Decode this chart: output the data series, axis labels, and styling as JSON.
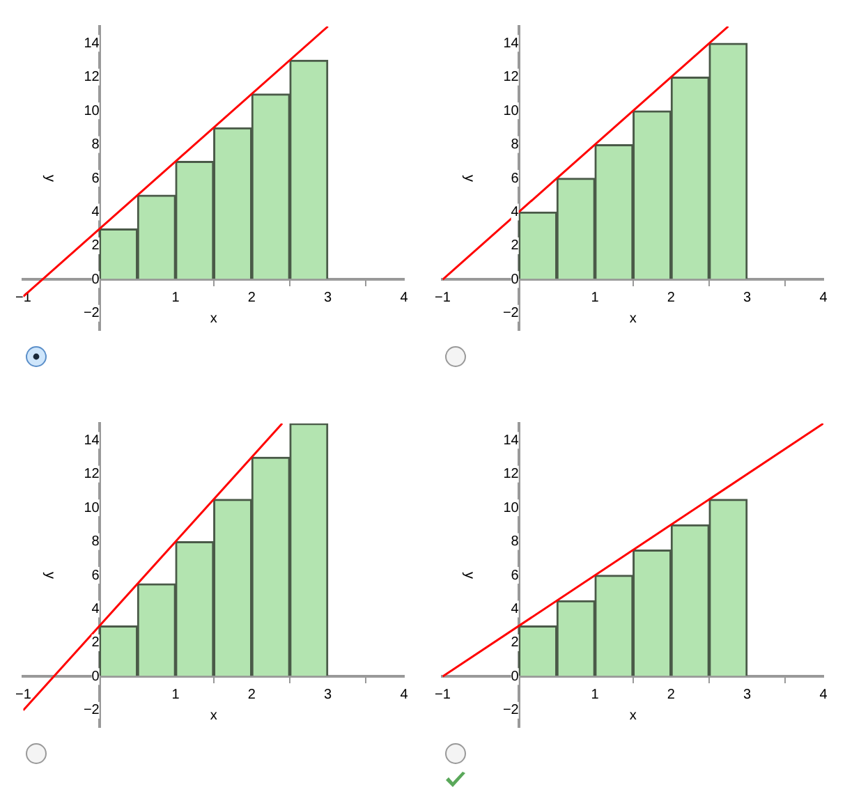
{
  "chart_data": [
    {
      "type": "bar",
      "xlabel": "x",
      "ylabel": "y",
      "xlim": [
        -1,
        4
      ],
      "ylim": [
        -3,
        15
      ],
      "xticks": [
        -1,
        1,
        2,
        3,
        4
      ],
      "yticks": [
        -2,
        0,
        2,
        4,
        6,
        8,
        10,
        12,
        14
      ],
      "series": [
        {
          "color": "#b3e4b0",
          "x": [
            0.25,
            0.75,
            1.25,
            1.75,
            2.25,
            2.75
          ],
          "values": [
            3,
            5,
            7,
            9,
            11,
            13
          ]
        },
        {
          "type": "line",
          "color": "#ff0000",
          "x": [
            -1,
            3
          ],
          "values": [
            -1,
            15
          ]
        }
      ]
    },
    {
      "type": "bar",
      "xlabel": "x",
      "ylabel": "y",
      "xlim": [
        -1,
        4
      ],
      "ylim": [
        -3,
        15
      ],
      "xticks": [
        -1,
        1,
        2,
        3,
        4
      ],
      "yticks": [
        -2,
        0,
        2,
        4,
        6,
        8,
        10,
        12,
        14
      ],
      "series": [
        {
          "color": "#b3e4b0",
          "x": [
            0.25,
            0.75,
            1.25,
            1.75,
            2.25,
            2.75
          ],
          "values": [
            4,
            6,
            8,
            10,
            12,
            14
          ]
        },
        {
          "type": "line",
          "color": "#ff0000",
          "x": [
            -1,
            2.75
          ],
          "values": [
            0,
            15
          ]
        }
      ]
    },
    {
      "type": "bar",
      "xlabel": "x",
      "ylabel": "y",
      "xlim": [
        -1,
        4
      ],
      "ylim": [
        -3,
        15
      ],
      "xticks": [
        -1,
        1,
        2,
        3,
        4
      ],
      "yticks": [
        -2,
        0,
        2,
        4,
        6,
        8,
        10,
        12,
        14
      ],
      "series": [
        {
          "color": "#b3e4b0",
          "x": [
            0.25,
            0.75,
            1.25,
            1.75,
            2.25,
            2.75
          ],
          "values": [
            3,
            5.5,
            8,
            10.5,
            13,
            15
          ]
        },
        {
          "type": "line",
          "color": "#ff0000",
          "x": [
            -1,
            2.4
          ],
          "values": [
            -2,
            15
          ]
        }
      ]
    },
    {
      "type": "bar",
      "xlabel": "x",
      "ylabel": "y",
      "xlim": [
        -1,
        4
      ],
      "ylim": [
        -3,
        15
      ],
      "xticks": [
        -1,
        1,
        2,
        3,
        4
      ],
      "yticks": [
        -2,
        0,
        2,
        4,
        6,
        8,
        10,
        12,
        14
      ],
      "series": [
        {
          "color": "#b3e4b0",
          "x": [
            0.25,
            0.75,
            1.25,
            1.75,
            2.25,
            2.75
          ],
          "values": [
            3,
            4.5,
            6,
            7.5,
            9,
            10.5
          ]
        },
        {
          "type": "line",
          "color": "#ff0000",
          "x": [
            -1,
            4
          ],
          "values": [
            0,
            15
          ]
        }
      ]
    }
  ]
}
